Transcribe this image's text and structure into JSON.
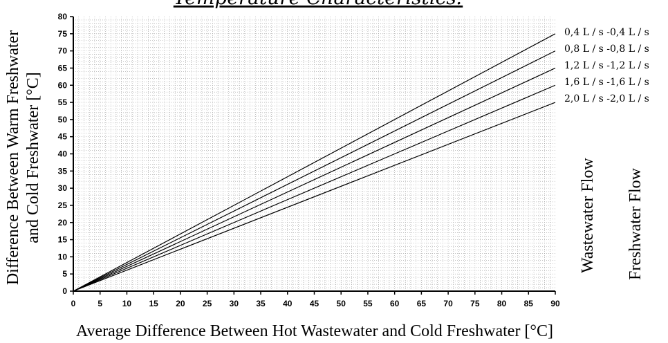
{
  "chart_data": {
    "type": "line",
    "title": "Temperature Characteristics:",
    "xlabel": "Average Difference Between Hot Wastewater and Cold Freshwater [°C]",
    "ylabel_line1": "Difference Between Warm Freshwater",
    "ylabel_line2": "and Cold Freshwater [°C]",
    "xlim": [
      0,
      90
    ],
    "ylim": [
      0,
      80
    ],
    "xticks": [
      "0",
      "5",
      "10",
      "15",
      "20",
      "25",
      "30",
      "35",
      "40",
      "45",
      "50",
      "55",
      "60",
      "65",
      "70",
      "75",
      "80",
      "85",
      "90"
    ],
    "yticks": [
      "0",
      "5",
      "10",
      "15",
      "20",
      "25",
      "30",
      "35",
      "40",
      "45",
      "50",
      "55",
      "60",
      "65",
      "70",
      "75",
      "80"
    ],
    "grid": true,
    "legend_position": "right",
    "series": [
      {
        "name": "0,4 L / s -0,4 L / s",
        "x": [
          0,
          90
        ],
        "y": [
          0,
          75
        ]
      },
      {
        "name": "0,8 L / s -0,8 L / s",
        "x": [
          0,
          90
        ],
        "y": [
          0,
          70
        ]
      },
      {
        "name": "1,2 L / s -1,2 L / s",
        "x": [
          0,
          90
        ],
        "y": [
          0,
          65
        ]
      },
      {
        "name": "1,6 L / s -1,6 L / s",
        "x": [
          0,
          90
        ],
        "y": [
          0,
          60
        ]
      },
      {
        "name": "2,0 L / s -2,0 L / s",
        "x": [
          0,
          90
        ],
        "y": [
          0,
          55
        ]
      }
    ],
    "side_labels": {
      "wastewater": "Wastewater Flow",
      "freshwater": "Freshwater Flow"
    },
    "line_color": "#000000",
    "grid_color": "#9a9a9a"
  }
}
